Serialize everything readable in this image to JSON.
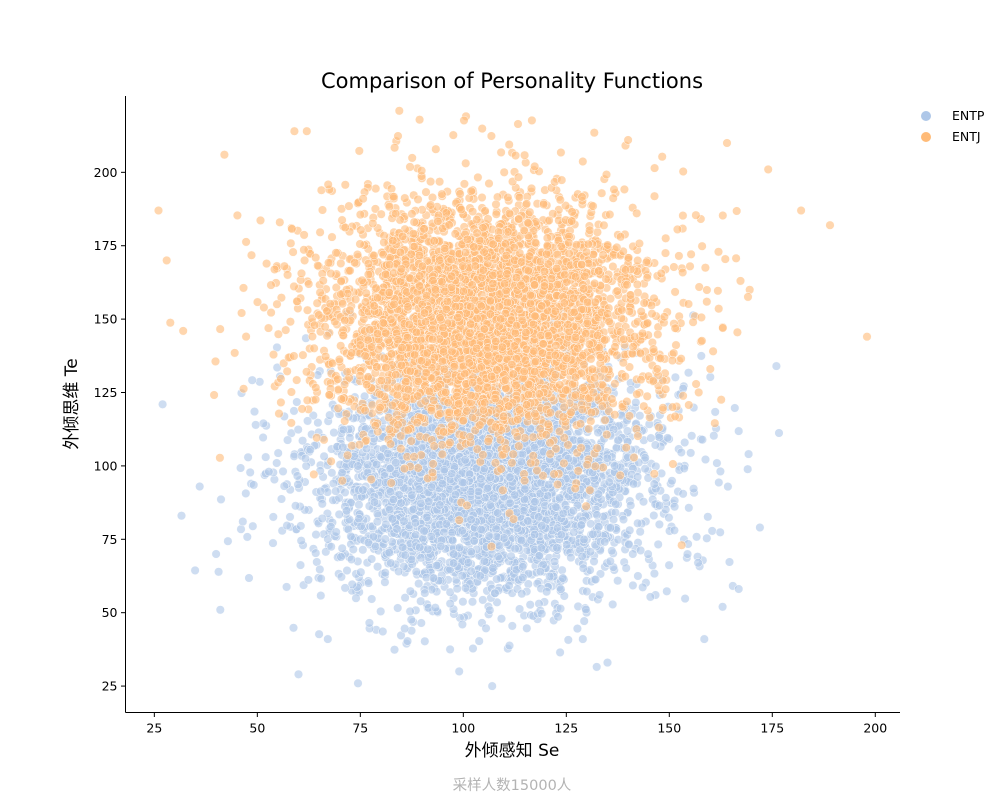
{
  "chart_data": {
    "type": "scatter",
    "title": "Comparison of Personality Functions",
    "xlabel": "外倾感知 Se",
    "ylabel": "外倾思维 Te",
    "caption": "采样人数15000人",
    "xlim": [
      18,
      206
    ],
    "ylim": [
      16,
      226
    ],
    "xticks": [
      25,
      50,
      75,
      100,
      125,
      150,
      175,
      200
    ],
    "yticks": [
      25,
      50,
      75,
      100,
      125,
      150,
      175,
      200
    ],
    "grid": false,
    "legend_position": "top-right",
    "point_alpha": 0.6,
    "series": [
      {
        "name": "ENTP",
        "color": "#aec7e8",
        "center": [
          105,
          95
        ],
        "spread": [
          20,
          20
        ],
        "count": 4500,
        "sample_points": [
          [
            27,
            121
          ],
          [
            36,
            93
          ],
          [
            40,
            70
          ],
          [
            41,
            51
          ],
          [
            60,
            29
          ],
          [
            99,
            30
          ],
          [
            107,
            25
          ],
          [
            129,
            41
          ],
          [
            135,
            33
          ],
          [
            157,
            67
          ],
          [
            172,
            79
          ],
          [
            176,
            134
          ]
        ]
      },
      {
        "name": "ENTJ",
        "color": "#ffbb78",
        "center": [
          105,
          150
        ],
        "spread": [
          20,
          20
        ],
        "count": 4500,
        "sample_points": [
          [
            26,
            187
          ],
          [
            28,
            170
          ],
          [
            32,
            146
          ],
          [
            42,
            206
          ],
          [
            59,
            214
          ],
          [
            62,
            214
          ],
          [
            140,
            211
          ],
          [
            164,
            210
          ],
          [
            174,
            201
          ],
          [
            182,
            187
          ],
          [
            189,
            182
          ],
          [
            198,
            144
          ],
          [
            153,
            73
          ]
        ]
      }
    ]
  }
}
